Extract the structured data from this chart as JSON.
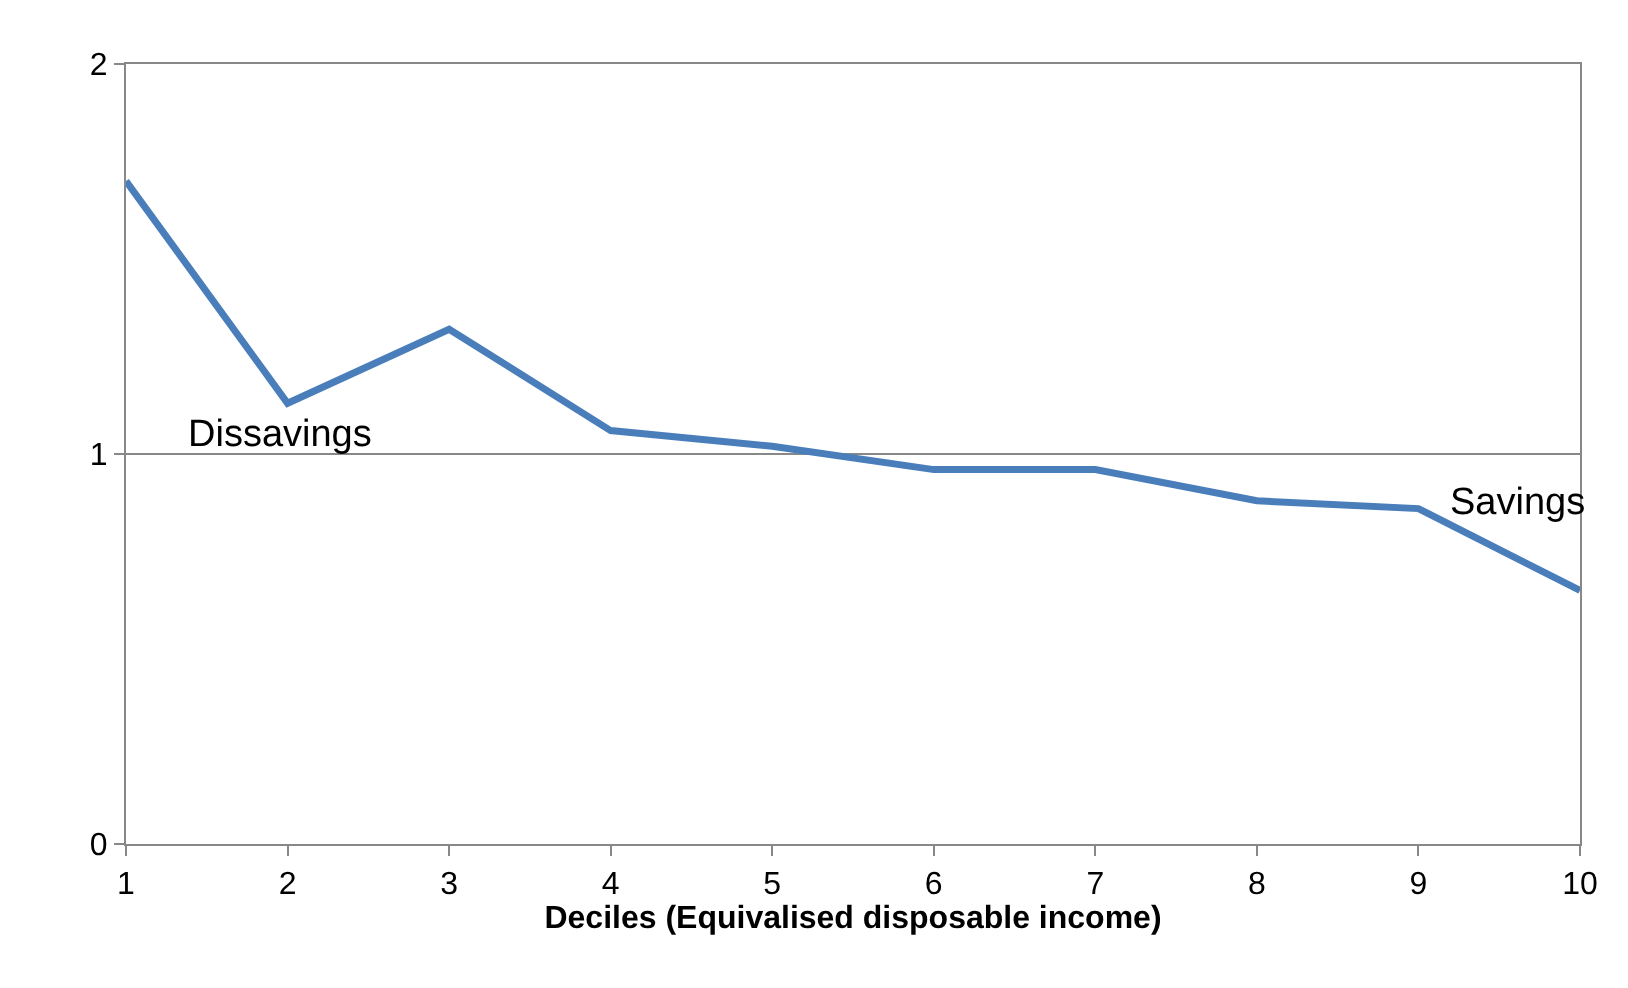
{
  "chart_data": {
    "type": "line",
    "xlabel": "Deciles (Equivalised disposable income)",
    "x": [
      1,
      2,
      3,
      4,
      5,
      6,
      7,
      8,
      9,
      10
    ],
    "series": [
      {
        "color": "#4a7ebb",
        "values": [
          1.7,
          1.13,
          1.32,
          1.06,
          1.02,
          0.96,
          0.96,
          0.88,
          0.86,
          0.65
        ]
      }
    ],
    "xlim": [
      1,
      10
    ],
    "xticks": [
      1,
      2,
      3,
      4,
      5,
      6,
      7,
      8,
      9,
      10
    ],
    "ylim": [
      0,
      2
    ],
    "yticks": [
      0,
      1,
      2
    ],
    "grid": "y",
    "marker": "none",
    "line_style": "solid",
    "annotations": [
      "Dissavings",
      "Savings"
    ]
  }
}
